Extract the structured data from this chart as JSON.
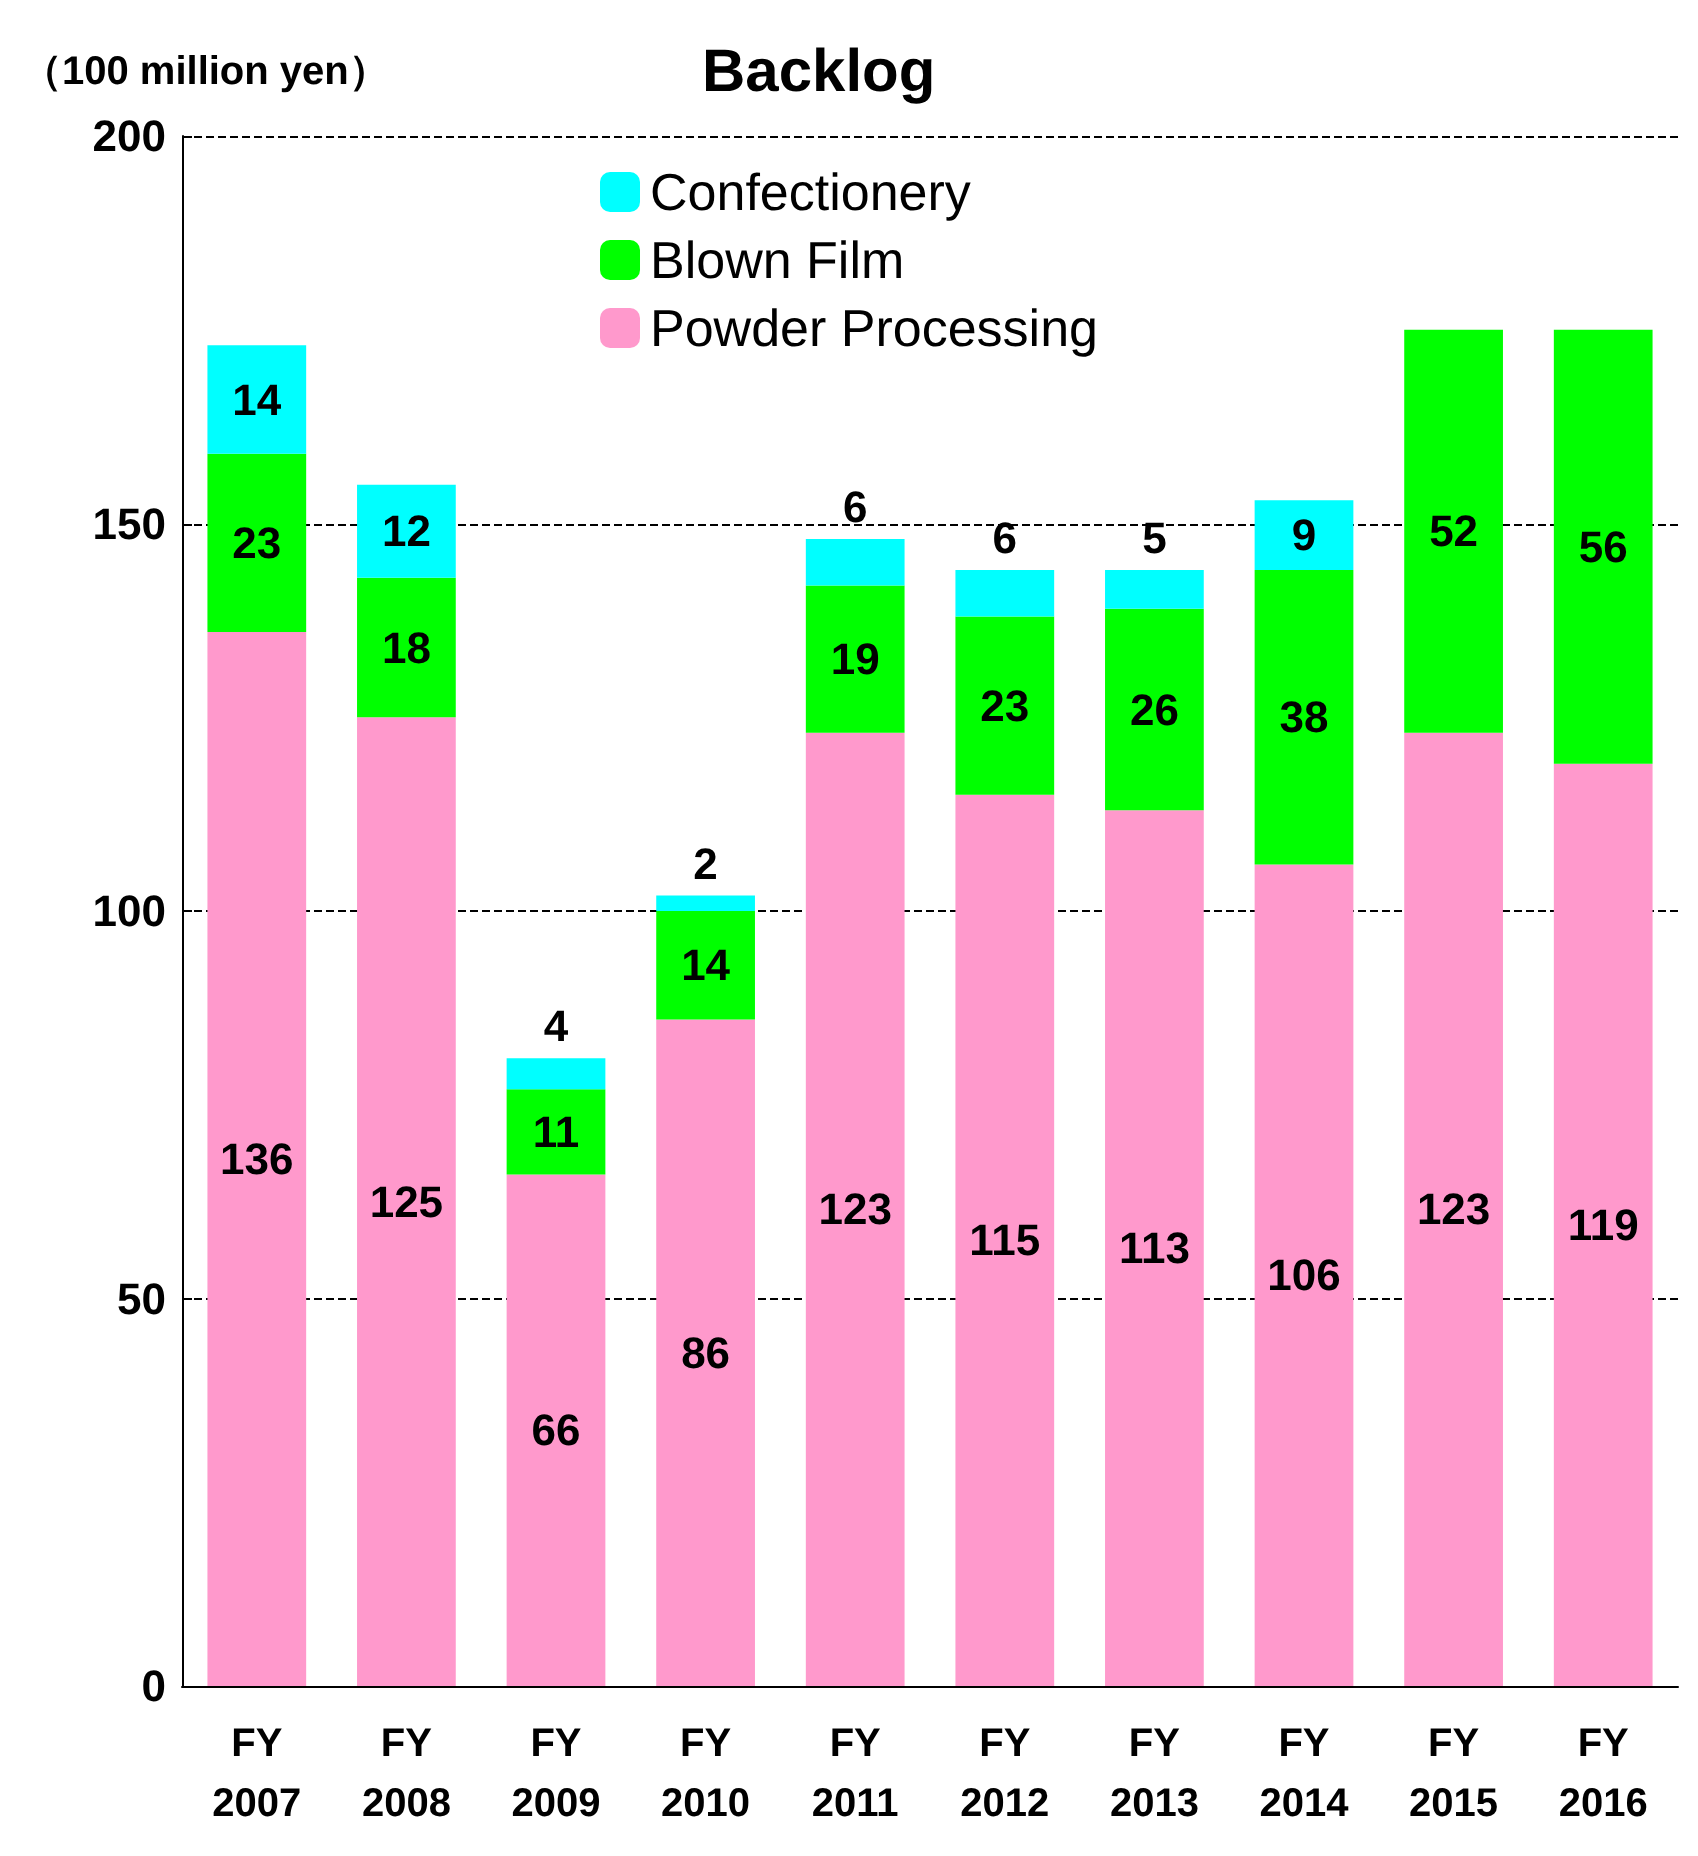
{
  "chart_data": {
    "type": "bar",
    "title": "Backlog",
    "ylabel": "（100 million yen）",
    "stacked": true,
    "data_labels": true,
    "grid": "y",
    "legend": "top",
    "categories": [
      "FY\n2007",
      "FY\n2008",
      "FY\n2009",
      "FY\n2010",
      "FY\n2011",
      "FY\n2012",
      "FY\n2013",
      "FY\n2014",
      "FY\n2015",
      "FY\n2016"
    ],
    "series": [
      {
        "name": "Powder Processing",
        "color": "#ff99cc",
        "values": [
          136,
          125,
          66,
          86,
          123,
          115,
          113,
          106,
          123,
          119
        ]
      },
      {
        "name": "Blown Film",
        "color": "#00ff00",
        "values": [
          23,
          18,
          11,
          14,
          19,
          23,
          26,
          38,
          52,
          56
        ]
      },
      {
        "name": "Confectionery",
        "color": "#00ffff",
        "values": [
          14,
          12,
          4,
          2,
          6,
          6,
          5,
          9,
          null,
          null
        ]
      }
    ],
    "ylim": [
      0,
      200
    ],
    "yticks": [
      0,
      50,
      100,
      150,
      200
    ]
  }
}
